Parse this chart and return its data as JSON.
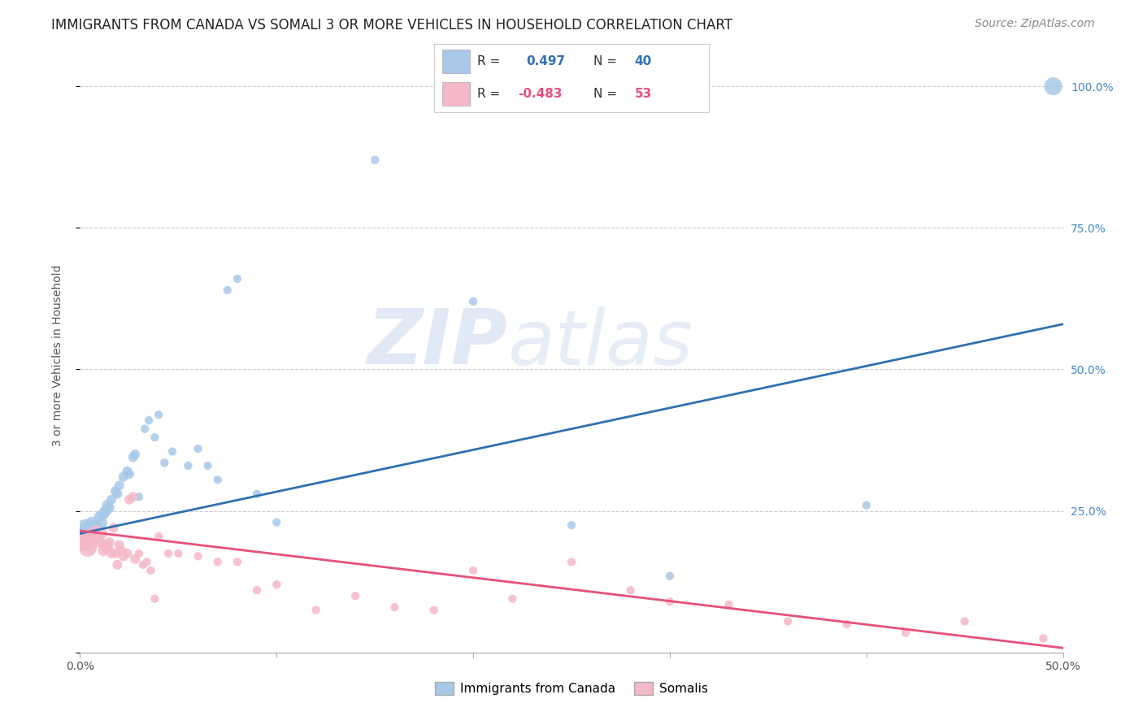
{
  "title": "IMMIGRANTS FROM CANADA VS SOMALI 3 OR MORE VEHICLES IN HOUSEHOLD CORRELATION CHART",
  "source": "Source: ZipAtlas.com",
  "ylabel": "3 or more Vehicles in Household",
  "xlim": [
    0.0,
    0.5
  ],
  "ylim": [
    0.0,
    1.05
  ],
  "ytick_positions": [
    0.0,
    0.25,
    0.5,
    0.75,
    1.0
  ],
  "ytick_labels_right": [
    "",
    "25.0%",
    "50.0%",
    "75.0%",
    "100.0%"
  ],
  "canada_R": 0.497,
  "canada_N": 40,
  "somali_R": -0.483,
  "somali_N": 53,
  "canada_color": "#a8c8e8",
  "somali_color": "#f4b8c8",
  "canada_line_color": "#3070b0",
  "somali_line_color": "#e8507a",
  "background_color": "#ffffff",
  "canada_x": [
    0.003,
    0.004,
    0.006,
    0.008,
    0.01,
    0.011,
    0.012,
    0.013,
    0.014,
    0.015,
    0.016,
    0.018,
    0.019,
    0.02,
    0.022,
    0.024,
    0.025,
    0.027,
    0.028,
    0.03,
    0.033,
    0.035,
    0.038,
    0.04,
    0.043,
    0.047,
    0.055,
    0.06,
    0.065,
    0.07,
    0.075,
    0.08,
    0.09,
    0.1,
    0.15,
    0.2,
    0.25,
    0.3,
    0.4,
    0.495
  ],
  "canada_y": [
    0.22,
    0.215,
    0.23,
    0.225,
    0.24,
    0.23,
    0.245,
    0.25,
    0.26,
    0.255,
    0.27,
    0.285,
    0.28,
    0.295,
    0.31,
    0.32,
    0.315,
    0.345,
    0.35,
    0.275,
    0.395,
    0.41,
    0.38,
    0.42,
    0.335,
    0.355,
    0.33,
    0.36,
    0.33,
    0.305,
    0.64,
    0.66,
    0.28,
    0.23,
    0.87,
    0.62,
    0.225,
    0.135,
    0.26,
    1.0
  ],
  "somali_x": [
    0.001,
    0.002,
    0.004,
    0.005,
    0.006,
    0.007,
    0.008,
    0.009,
    0.01,
    0.011,
    0.012,
    0.013,
    0.014,
    0.015,
    0.016,
    0.017,
    0.018,
    0.019,
    0.02,
    0.021,
    0.022,
    0.024,
    0.025,
    0.027,
    0.028,
    0.03,
    0.032,
    0.034,
    0.036,
    0.038,
    0.04,
    0.045,
    0.05,
    0.06,
    0.07,
    0.08,
    0.09,
    0.1,
    0.12,
    0.14,
    0.16,
    0.18,
    0.2,
    0.22,
    0.25,
    0.28,
    0.3,
    0.33,
    0.36,
    0.39,
    0.42,
    0.45,
    0.49
  ],
  "somali_y": [
    0.2,
    0.195,
    0.185,
    0.19,
    0.21,
    0.2,
    0.215,
    0.205,
    0.195,
    0.21,
    0.18,
    0.19,
    0.185,
    0.195,
    0.175,
    0.22,
    0.175,
    0.155,
    0.19,
    0.18,
    0.17,
    0.175,
    0.27,
    0.275,
    0.165,
    0.175,
    0.155,
    0.16,
    0.145,
    0.095,
    0.205,
    0.175,
    0.175,
    0.17,
    0.16,
    0.16,
    0.11,
    0.12,
    0.075,
    0.1,
    0.08,
    0.075,
    0.145,
    0.095,
    0.16,
    0.11,
    0.09,
    0.085,
    0.055,
    0.05,
    0.035,
    0.055,
    0.025
  ],
  "title_fontsize": 12,
  "axis_label_fontsize": 10,
  "tick_fontsize": 10,
  "source_fontsize": 10
}
